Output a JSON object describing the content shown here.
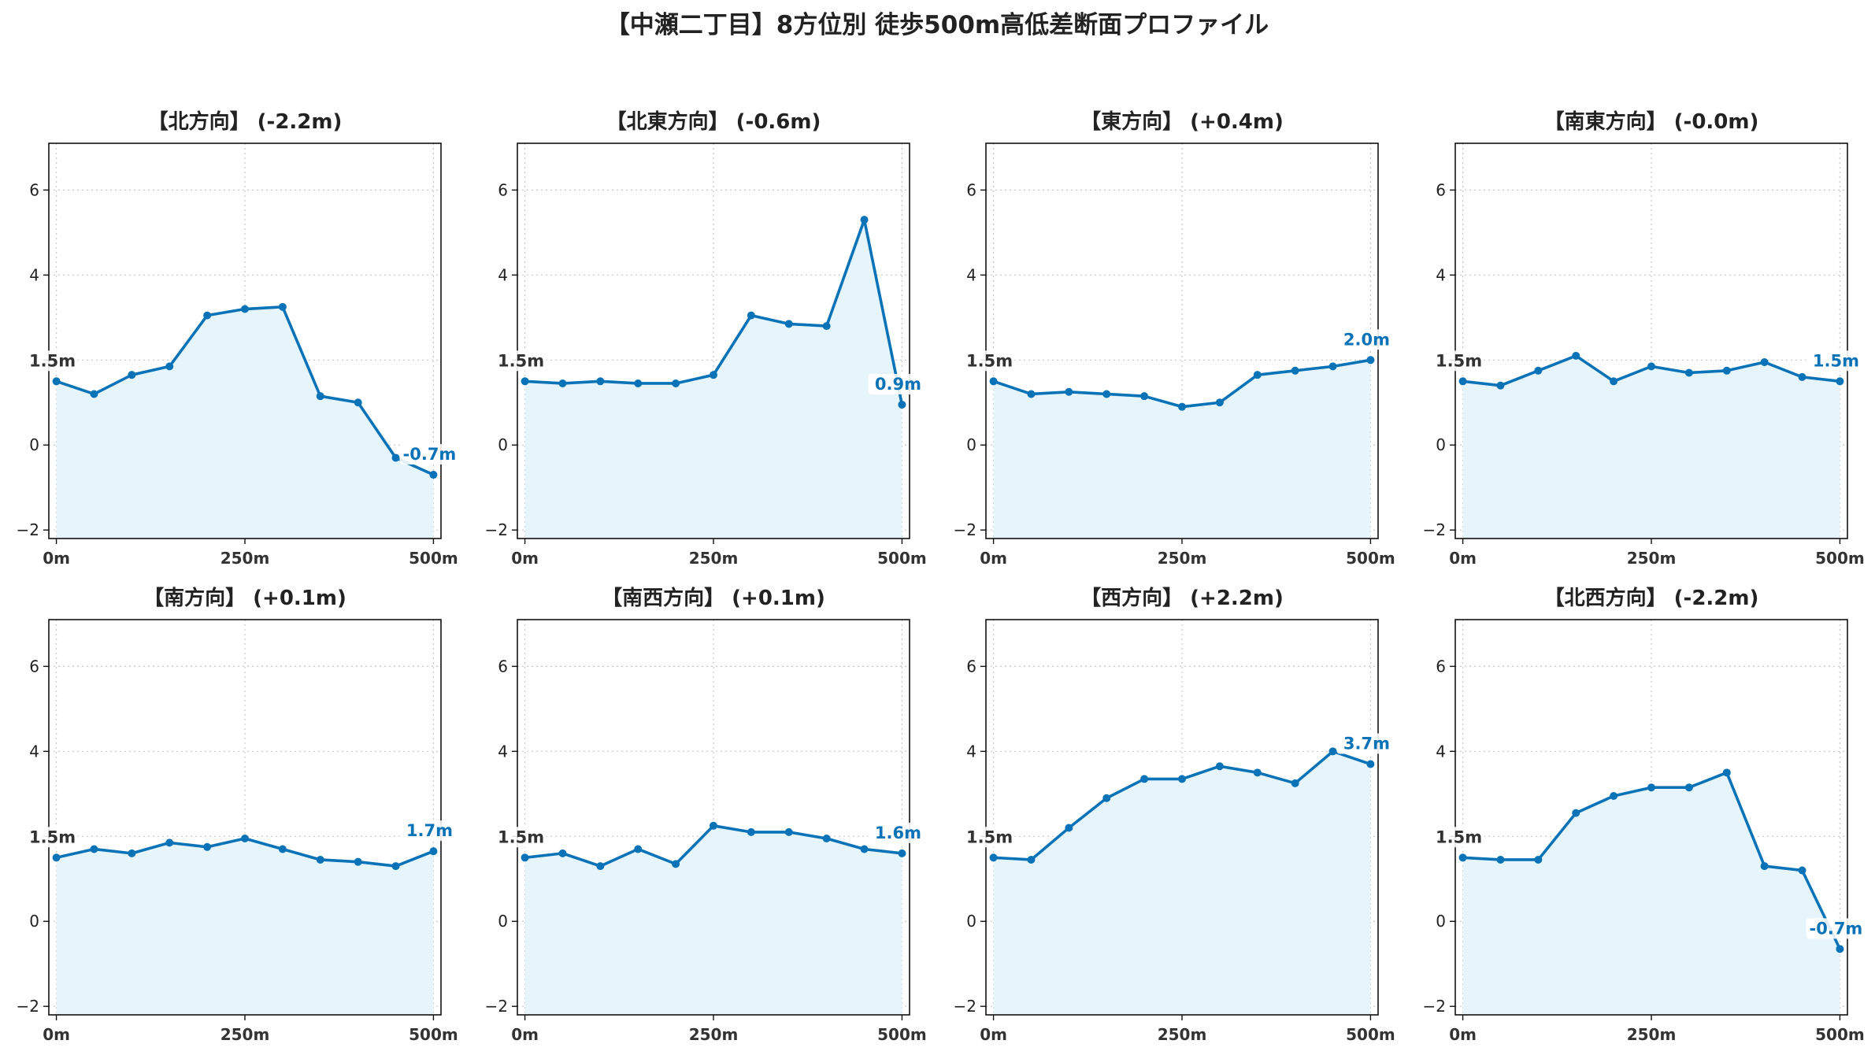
{
  "chart_data": {
    "type": "line",
    "title": "【中瀬二丁目】8方位別 徒歩500m高低差断面プロファイル",
    "line_color": "#0a73b7",
    "fill_color": "#e6f5fb",
    "ylim": [
      -2.2,
      7.1
    ],
    "yticks": [
      -2,
      0,
      2,
      4,
      6
    ],
    "ytick_labels": [
      "−2",
      "0",
      "2",
      "4",
      "6"
    ],
    "xlim": [
      -10,
      510
    ],
    "xticks": [
      0,
      250,
      500
    ],
    "xtick_labels": [
      "0m",
      "250m",
      "500m"
    ],
    "grid": true,
    "x": [
      0,
      50,
      100,
      150,
      200,
      250,
      300,
      350,
      400,
      450,
      500
    ],
    "start_label": "1.5m",
    "panels": [
      {
        "title": "【北方向】 (-2.2m)",
        "end_label": "-0.7m",
        "values": [
          1.5,
          1.2,
          1.65,
          1.85,
          3.05,
          3.2,
          3.25,
          1.15,
          1.0,
          -0.3,
          -0.7
        ]
      },
      {
        "title": "【北東方向】 (-0.6m)",
        "end_label": "0.9m",
        "values": [
          1.5,
          1.45,
          1.5,
          1.45,
          1.45,
          1.65,
          3.05,
          2.85,
          2.8,
          5.3,
          0.95
        ]
      },
      {
        "title": "【東方向】 (+0.4m)",
        "end_label": "2.0m",
        "values": [
          1.5,
          1.2,
          1.25,
          1.2,
          1.15,
          0.9,
          1.0,
          1.65,
          1.75,
          1.85,
          2.0
        ]
      },
      {
        "title": "【南東方向】 (-0.0m)",
        "end_label": "1.5m",
        "values": [
          1.5,
          1.4,
          1.75,
          2.1,
          1.5,
          1.85,
          1.7,
          1.75,
          1.95,
          1.6,
          1.5
        ]
      },
      {
        "title": "【南方向】 (+0.1m)",
        "end_label": "1.7m",
        "values": [
          1.5,
          1.7,
          1.6,
          1.85,
          1.75,
          1.95,
          1.7,
          1.45,
          1.4,
          1.3,
          1.65
        ]
      },
      {
        "title": "【南西方向】 (+0.1m)",
        "end_label": "1.6m",
        "values": [
          1.5,
          1.6,
          1.3,
          1.7,
          1.35,
          2.25,
          2.1,
          2.1,
          1.95,
          1.7,
          1.6
        ]
      },
      {
        "title": "【西方向】 (+2.2m)",
        "end_label": "3.7m",
        "values": [
          1.5,
          1.45,
          2.2,
          2.9,
          3.35,
          3.35,
          3.65,
          3.5,
          3.25,
          4.0,
          3.7
        ]
      },
      {
        "title": "【北西方向】 (-2.2m)",
        "end_label": "-0.7m",
        "values": [
          1.5,
          1.45,
          1.45,
          2.55,
          2.95,
          3.15,
          3.15,
          3.5,
          1.3,
          1.2,
          -0.65
        ]
      }
    ]
  }
}
